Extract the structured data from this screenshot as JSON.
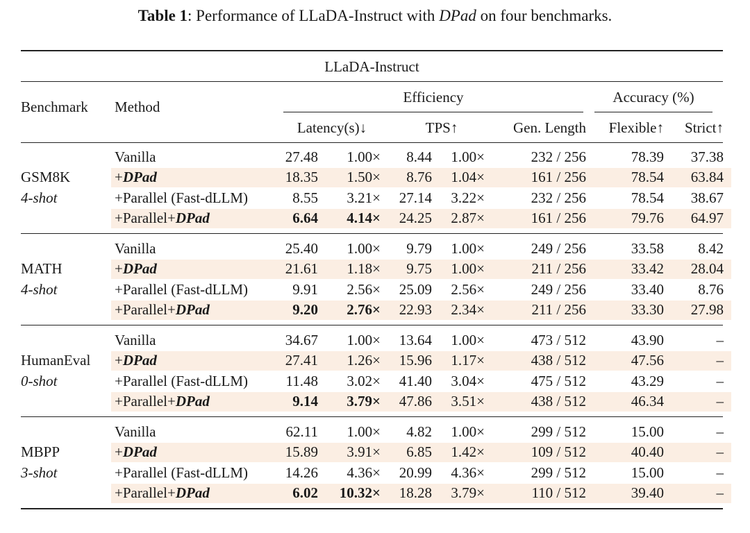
{
  "caption": {
    "label": "Table 1",
    "text_before": ": Performance of LLaDA-Instruct with ",
    "emph": "DPad",
    "text_after": " on four benchmarks."
  },
  "header": {
    "model": "LLaDA-Instruct",
    "benchmark": "Benchmark",
    "method": "Method",
    "efficiency": "Efficiency",
    "accuracy": "Accuracy (%)",
    "latency": "Latency(s)↓",
    "tps": "TPS↑",
    "gen_length": "Gen. Length",
    "flexible": "Flexible↑",
    "strict": "Strict↑"
  },
  "method_labels": {
    "vanilla": "Vanilla",
    "dpad_prefix": "+",
    "dpad": "DPad",
    "parallel_fast": "+Parallel (Fast-dLLM)",
    "parallel_prefix": "+Parallel+"
  },
  "groups": [
    {
      "name": "GSM8K",
      "shot": "4-shot",
      "rows": [
        {
          "latency": "27.48",
          "lat_speed": "1.00×",
          "tps": "8.44",
          "tps_speed": "1.00×",
          "gen": "232 / 256",
          "flex": "78.39",
          "strict": "37.38"
        },
        {
          "latency": "18.35",
          "lat_speed": "1.50×",
          "tps": "8.76",
          "tps_speed": "1.04×",
          "gen": "161 / 256",
          "flex": "78.54",
          "strict": "63.84"
        },
        {
          "latency": "8.55",
          "lat_speed": "3.21×",
          "tps": "27.14",
          "tps_speed": "3.22×",
          "gen": "232 / 256",
          "flex": "78.54",
          "strict": "38.67"
        },
        {
          "latency": "6.64",
          "lat_speed": "4.14×",
          "tps": "24.25",
          "tps_speed": "2.87×",
          "gen": "161 / 256",
          "flex": "79.76",
          "strict": "64.97"
        }
      ]
    },
    {
      "name": "MATH",
      "shot": "4-shot",
      "rows": [
        {
          "latency": "25.40",
          "lat_speed": "1.00×",
          "tps": "9.79",
          "tps_speed": "1.00×",
          "gen": "249 / 256",
          "flex": "33.58",
          "strict": "8.42"
        },
        {
          "latency": "21.61",
          "lat_speed": "1.18×",
          "tps": "9.75",
          "tps_speed": "1.00×",
          "gen": "211 / 256",
          "flex": "33.42",
          "strict": "28.04"
        },
        {
          "latency": "9.91",
          "lat_speed": "2.56×",
          "tps": "25.09",
          "tps_speed": "2.56×",
          "gen": "249 / 256",
          "flex": "33.40",
          "strict": "8.76"
        },
        {
          "latency": "9.20",
          "lat_speed": "2.76×",
          "tps": "22.93",
          "tps_speed": "2.34×",
          "gen": "211 / 256",
          "flex": "33.30",
          "strict": "27.98"
        }
      ]
    },
    {
      "name": "HumanEval",
      "shot": "0-shot",
      "rows": [
        {
          "latency": "34.67",
          "lat_speed": "1.00×",
          "tps": "13.64",
          "tps_speed": "1.00×",
          "gen": "473 / 512",
          "flex": "43.90",
          "strict": "–"
        },
        {
          "latency": "27.41",
          "lat_speed": "1.26×",
          "tps": "15.96",
          "tps_speed": "1.17×",
          "gen": "438 / 512",
          "flex": "47.56",
          "strict": "–"
        },
        {
          "latency": "11.48",
          "lat_speed": "3.02×",
          "tps": "41.40",
          "tps_speed": "3.04×",
          "gen": "475 / 512",
          "flex": "43.29",
          "strict": "–"
        },
        {
          "latency": "9.14",
          "lat_speed": "3.79×",
          "tps": "47.86",
          "tps_speed": "3.51×",
          "gen": "438 / 512",
          "flex": "46.34",
          "strict": "–"
        }
      ]
    },
    {
      "name": "MBPP",
      "shot": "3-shot",
      "rows": [
        {
          "latency": "62.11",
          "lat_speed": "1.00×",
          "tps": "4.82",
          "tps_speed": "1.00×",
          "gen": "299 / 512",
          "flex": "15.00",
          "strict": "–"
        },
        {
          "latency": "15.89",
          "lat_speed": "3.91×",
          "tps": "6.85",
          "tps_speed": "1.42×",
          "gen": "109 / 512",
          "flex": "40.40",
          "strict": "–"
        },
        {
          "latency": "14.26",
          "lat_speed": "4.36×",
          "tps": "20.99",
          "tps_speed": "4.36×",
          "gen": "299 / 512",
          "flex": "15.00",
          "strict": "–"
        },
        {
          "latency": "6.02",
          "lat_speed": "10.32×",
          "tps": "18.28",
          "tps_speed": "3.79×",
          "gen": "110 / 512",
          "flex": "39.40",
          "strict": "–"
        }
      ]
    }
  ],
  "colors": {
    "highlight": "#fbeee3",
    "text": "#1a1a1a",
    "rule": "#222222"
  }
}
